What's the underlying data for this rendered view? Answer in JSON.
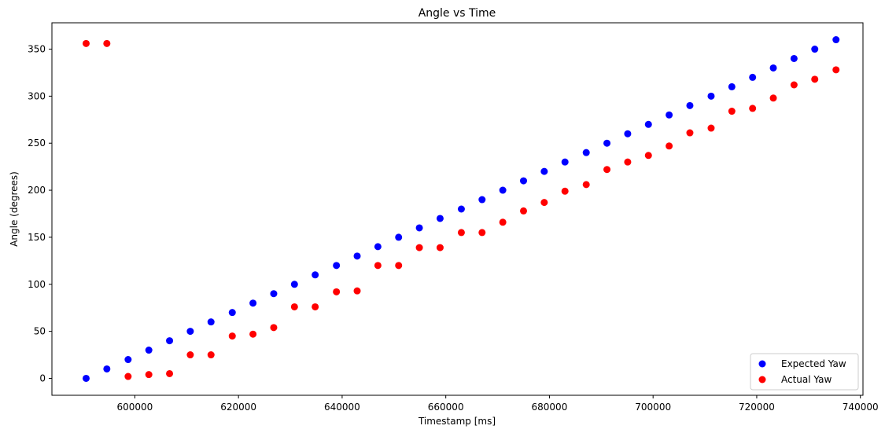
{
  "chart_data": {
    "type": "scatter",
    "title": "Angle vs Time",
    "xlabel": "Timestamp [ms]",
    "ylabel": "Angle (degrees)",
    "xlim": [
      584000,
      740500
    ],
    "ylim": [
      -18,
      378
    ],
    "xticks": [
      600000,
      620000,
      640000,
      660000,
      680000,
      700000,
      720000,
      740000
    ],
    "xtick_labels": [
      "600000",
      "620000",
      "640000",
      "660000",
      "680000",
      "700000",
      "720000",
      "740000"
    ],
    "yticks": [
      0,
      50,
      100,
      150,
      200,
      250,
      300,
      350
    ],
    "ytick_labels": [
      "0",
      "50",
      "100",
      "150",
      "200",
      "250",
      "300",
      "350"
    ],
    "grid": false,
    "legend_position": "bottom-right",
    "series": [
      {
        "name": "Expected Yaw",
        "color": "#0000ff",
        "points": [
          [
            590600,
            0
          ],
          [
            594600,
            10
          ],
          [
            598700,
            20
          ],
          [
            602700,
            30
          ],
          [
            606700,
            40
          ],
          [
            610700,
            50
          ],
          [
            614700,
            60
          ],
          [
            618800,
            70
          ],
          [
            622800,
            80
          ],
          [
            626800,
            90
          ],
          [
            630800,
            100
          ],
          [
            634800,
            110
          ],
          [
            638900,
            120
          ],
          [
            642900,
            130
          ],
          [
            646900,
            140
          ],
          [
            650900,
            150
          ],
          [
            654900,
            160
          ],
          [
            658900,
            170
          ],
          [
            663000,
            180
          ],
          [
            667000,
            190
          ],
          [
            671000,
            200
          ],
          [
            675000,
            210
          ],
          [
            679000,
            220
          ],
          [
            683000,
            230
          ],
          [
            687100,
            240
          ],
          [
            691100,
            250
          ],
          [
            695100,
            260
          ],
          [
            699100,
            270
          ],
          [
            703100,
            280
          ],
          [
            707100,
            290
          ],
          [
            711200,
            300
          ],
          [
            715200,
            310
          ],
          [
            719200,
            320
          ],
          [
            723200,
            330
          ],
          [
            727200,
            340
          ],
          [
            731200,
            350
          ],
          [
            735300,
            360
          ]
        ]
      },
      {
        "name": "Actual Yaw",
        "color": "#ff0000",
        "points": [
          [
            590600,
            356
          ],
          [
            594600,
            356
          ],
          [
            598700,
            2
          ],
          [
            602700,
            4
          ],
          [
            606700,
            5
          ],
          [
            610700,
            25
          ],
          [
            614700,
            25
          ],
          [
            618800,
            45
          ],
          [
            622800,
            47
          ],
          [
            626800,
            54
          ],
          [
            630800,
            76
          ],
          [
            634800,
            76
          ],
          [
            638900,
            92
          ],
          [
            642900,
            93
          ],
          [
            646900,
            120
          ],
          [
            650900,
            120
          ],
          [
            654900,
            139
          ],
          [
            658900,
            139
          ],
          [
            663000,
            155
          ],
          [
            667000,
            155
          ],
          [
            671000,
            166
          ],
          [
            675000,
            178
          ],
          [
            679000,
            187
          ],
          [
            683000,
            199
          ],
          [
            687100,
            206
          ],
          [
            691100,
            222
          ],
          [
            695100,
            230
          ],
          [
            699100,
            237
          ],
          [
            703100,
            247
          ],
          [
            707100,
            261
          ],
          [
            711200,
            266
          ],
          [
            715200,
            284
          ],
          [
            719200,
            287
          ],
          [
            723200,
            298
          ],
          [
            727200,
            312
          ],
          [
            731200,
            318
          ],
          [
            735300,
            328
          ]
        ]
      }
    ]
  }
}
